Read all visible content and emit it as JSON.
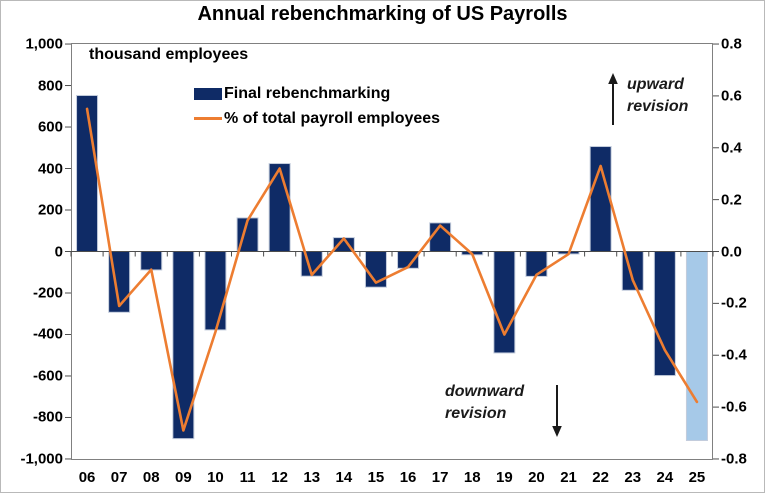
{
  "title": "Annual rebenchmarking of US Payrolls",
  "units_label": "thousand employees",
  "annotations": {
    "upward": "upward\nrevision",
    "downward": "downward\nrevision"
  },
  "colors": {
    "bar": "#0F2B66",
    "bar_preliminary": "#A6C9E8",
    "line": "#ED7D31",
    "plot_border": "#808080",
    "axis_tick": "#4d4d4d",
    "bar_outline": "#C3CCDC"
  },
  "chart_data": {
    "type": "bar",
    "combo": "bar+line",
    "title": "Annual rebenchmarking of US Payrolls",
    "xlabel": "",
    "ylabel_left": "thousand employees",
    "ylabel_right": "% of total payroll employees",
    "legend_position": "top-center",
    "grid": false,
    "categories": [
      "06",
      "07",
      "08",
      "09",
      "10",
      "11",
      "12",
      "13",
      "14",
      "15",
      "16",
      "17",
      "18",
      "19",
      "20",
      "21",
      "22",
      "23",
      "24",
      "25"
    ],
    "series": [
      {
        "name": "Final rebenchmarking",
        "type": "bar",
        "axis": "left",
        "color": "#0F2B66",
        "highlight_index": 19,
        "highlight_color": "#A6C9E8",
        "values": [
          752,
          -293,
          -89,
          -902,
          -378,
          162,
          424,
          -119,
          67,
          -172,
          -81,
          138,
          -16,
          -489,
          -120,
          -12,
          506,
          -187,
          -598,
          -911
        ]
      },
      {
        "name": "% of total payroll employees",
        "type": "line",
        "axis": "right",
        "color": "#ED7D31",
        "values": [
          0.55,
          -0.21,
          -0.07,
          -0.69,
          -0.31,
          0.12,
          0.32,
          -0.09,
          0.05,
          -0.12,
          -0.06,
          0.1,
          -0.01,
          -0.32,
          -0.09,
          -0.01,
          0.33,
          -0.11,
          -0.38,
          -0.58
        ]
      }
    ],
    "left_axis": {
      "min": -1000,
      "max": 1000,
      "step": 200,
      "plot_max": 1005,
      "plot_min": -1005,
      "tick_values": [
        1000,
        800,
        600,
        400,
        200,
        0,
        -200,
        -400,
        -600,
        -800,
        -1000
      ],
      "tick_labels": [
        "1,000",
        "800",
        "600",
        "400",
        "200",
        "0",
        "-200",
        "-400",
        "-600",
        "-800",
        "-1,000"
      ]
    },
    "right_axis": {
      "min": -0.8,
      "max": 0.8,
      "step": 0.2,
      "plot_max": 0.804,
      "plot_min": -0.804,
      "tick_values": [
        0.8,
        0.6,
        0.4,
        0.2,
        0.0,
        -0.2,
        -0.4,
        -0.6,
        -0.8
      ],
      "tick_labels": [
        "0.8",
        "0.6",
        "0.4",
        "0.2",
        "0.0",
        "-0.2",
        "-0.4",
        "-0.6",
        "-0.8"
      ]
    }
  }
}
